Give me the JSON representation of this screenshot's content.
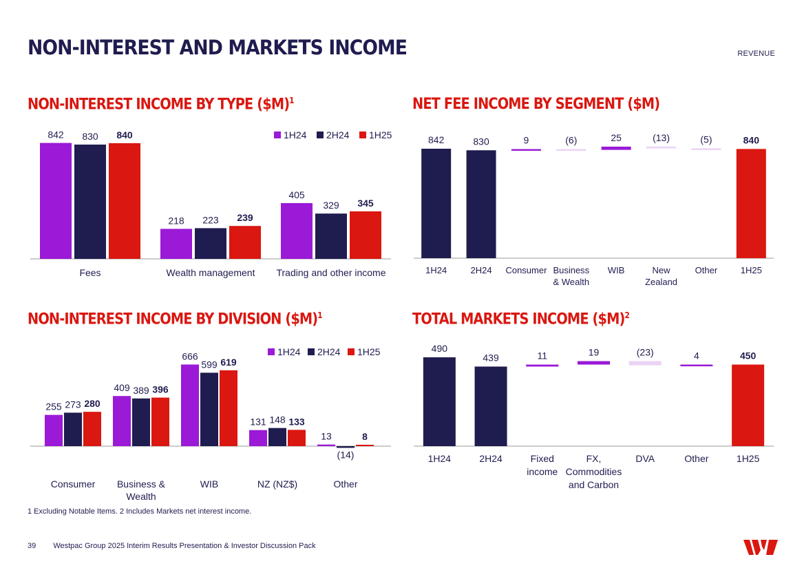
{
  "header": {
    "title": "NON-INTEREST AND MARKETS INCOME",
    "section": "REVENUE"
  },
  "colors": {
    "h1_24": "#9a1ad7",
    "h2_24": "#1f1c4f",
    "h1_25": "#da1710",
    "positive": "#9a1ad7",
    "negative": "#ead3f5",
    "navy": "#1f1c4f",
    "red": "#da1710"
  },
  "chart_data": [
    {
      "id": "by_type",
      "type": "bar",
      "title": "NON-INTEREST INCOME BY TYPE ($M)",
      "title_sup": "1",
      "categories": [
        "Fees",
        "Wealth management",
        "Trading and other income"
      ],
      "series": [
        {
          "name": "1H24",
          "values": [
            842,
            218,
            405
          ]
        },
        {
          "name": "2H24",
          "values": [
            830,
            223,
            329
          ]
        },
        {
          "name": "1H25",
          "values": [
            840,
            239,
            345
          ]
        }
      ]
    },
    {
      "id": "by_division",
      "type": "bar",
      "title": "NON-INTEREST INCOME BY DIVISION ($M)",
      "title_sup": "1",
      "categories": [
        "Consumer",
        "Business & Wealth",
        "WIB",
        "NZ (NZ$)",
        "Other"
      ],
      "category_lines": [
        [
          "Consumer"
        ],
        [
          "Business &",
          "Wealth"
        ],
        [
          "WIB"
        ],
        [
          "NZ (NZ$)"
        ],
        [
          "Other"
        ]
      ],
      "series": [
        {
          "name": "1H24",
          "values": [
            255,
            409,
            666,
            131,
            13
          ]
        },
        {
          "name": "2H24",
          "values": [
            273,
            389,
            599,
            148,
            -14
          ]
        },
        {
          "name": "1H25",
          "values": [
            280,
            396,
            619,
            133,
            8
          ]
        }
      ]
    },
    {
      "id": "fee_by_segment",
      "type": "waterfall",
      "title": "NET FEE INCOME BY SEGMENT ($M)",
      "title_sup": "",
      "categories": [
        "1H24",
        "2H24",
        "Consumer",
        "Business & Wealth",
        "WIB",
        "New Zealand",
        "Other",
        "1H25"
      ],
      "category_lines": [
        [
          "1H24"
        ],
        [
          "2H24"
        ],
        [
          "Consumer"
        ],
        [
          "Business",
          "& Wealth"
        ],
        [
          "WIB"
        ],
        [
          "New",
          "Zealand"
        ],
        [
          "Other"
        ],
        [
          "1H25"
        ]
      ],
      "values": [
        842,
        830,
        9,
        -6,
        25,
        -13,
        -5,
        840
      ],
      "labels": [
        "842",
        "830",
        "9",
        "(6)",
        "25",
        "(13)",
        "(5)",
        "840"
      ],
      "kinds": [
        "total",
        "total",
        "delta",
        "delta",
        "delta",
        "delta",
        "delta",
        "final"
      ],
      "ylim": [
        0,
        842
      ]
    },
    {
      "id": "markets_income",
      "type": "waterfall",
      "title": "TOTAL MARKETS INCOME ($M)",
      "title_sup": "2",
      "categories": [
        "1H24",
        "2H24",
        "Fixed income",
        "FX, Commodities and Carbon",
        "DVA",
        "Other",
        "1H25"
      ],
      "category_lines": [
        [
          "1H24"
        ],
        [
          "2H24"
        ],
        [
          "Fixed",
          "income"
        ],
        [
          "FX,",
          "Commodities",
          "and Carbon"
        ],
        [
          "DVA"
        ],
        [
          "Other"
        ],
        [
          "1H25"
        ]
      ],
      "values": [
        490,
        439,
        11,
        19,
        -23,
        4,
        450
      ],
      "labels": [
        "490",
        "439",
        "11",
        "19",
        "(23)",
        "4",
        "450"
      ],
      "kinds": [
        "total",
        "total",
        "delta",
        "delta",
        "delta",
        "delta",
        "final"
      ],
      "ylim": [
        0,
        490
      ]
    }
  ],
  "footnote": "1 Excluding Notable Items. 2 Includes Markets net interest income.",
  "footer": {
    "page": "39",
    "text": "Westpac Group 2025 Interim Results Presentation & Investor Discussion Pack"
  }
}
